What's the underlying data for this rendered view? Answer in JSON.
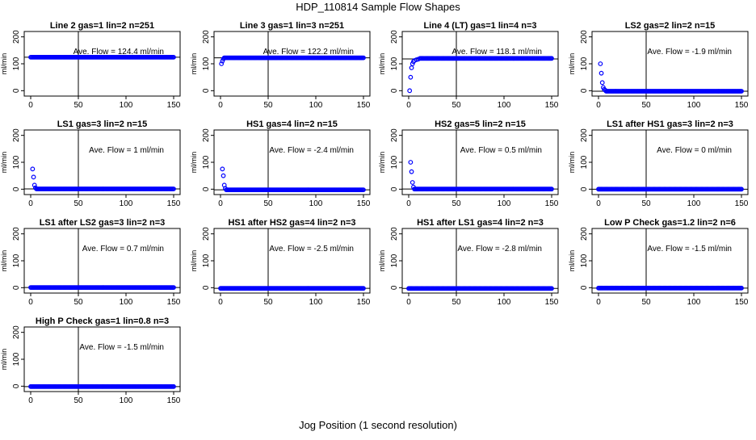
{
  "title": "HDP_110814  Sample Flow Shapes",
  "xlabel": "Jog Position (1 second resolution)",
  "ylabel": "ml/min",
  "colors": {
    "points": "#0000ff",
    "lines": "#000000",
    "frame": "#000000"
  },
  "chart_data": [
    {
      "type": "scatter",
      "title": "Line 2 gas=1 lin=2 n=251",
      "annotation": "Ave. Flow =  124.4  ml/min",
      "xlim": [
        0,
        150
      ],
      "ylim": [
        -20,
        220
      ],
      "xticks": [
        0,
        50,
        100,
        150
      ],
      "yticks": [
        0,
        100,
        200
      ],
      "vline": 50,
      "hline": 124.4,
      "early": [],
      "plateau": 124.4,
      "plateau_start": 0
    },
    {
      "type": "scatter",
      "title": "Line 3 gas=1 lin=3 n=251",
      "annotation": "Ave. Flow =  122.2  ml/min",
      "xlim": [
        0,
        150
      ],
      "ylim": [
        -20,
        220
      ],
      "xticks": [
        0,
        50,
        100,
        150
      ],
      "yticks": [
        0,
        100,
        200
      ],
      "vline": 50,
      "hline": 122.2,
      "early": [
        [
          1,
          100
        ],
        [
          2,
          110
        ],
        [
          3,
          118
        ]
      ],
      "plateau": 122.2,
      "plateau_start": 4
    },
    {
      "type": "scatter",
      "title": "Line 4 (LT) gas=1 lin=4 n=3",
      "annotation": "Ave. Flow =  118.1  ml/min",
      "xlim": [
        0,
        150
      ],
      "ylim": [
        -20,
        220
      ],
      "xticks": [
        0,
        50,
        100,
        150
      ],
      "yticks": [
        0,
        100,
        200
      ],
      "vline": 50,
      "hline": 118.1,
      "early": [
        [
          1,
          0
        ],
        [
          2,
          50
        ],
        [
          3,
          85
        ],
        [
          4,
          100
        ],
        [
          5,
          108
        ],
        [
          6,
          112
        ],
        [
          8,
          115
        ],
        [
          10,
          117
        ]
      ],
      "plateau": 120,
      "plateau_start": 12
    },
    {
      "type": "scatter",
      "title": "LS2 gas=2 lin=2 n=15",
      "annotation": "Ave. Flow =  -1.9  ml/min",
      "xlim": [
        0,
        150
      ],
      "ylim": [
        -20,
        220
      ],
      "xticks": [
        0,
        50,
        100,
        150
      ],
      "yticks": [
        0,
        100,
        200
      ],
      "vline": 50,
      "hline": -1.9,
      "early": [
        [
          2,
          100
        ],
        [
          3,
          65
        ],
        [
          4,
          30
        ],
        [
          5,
          12
        ],
        [
          6,
          5
        ],
        [
          7,
          2
        ]
      ],
      "plateau": -1.9,
      "plateau_start": 8
    },
    {
      "type": "scatter",
      "title": "LS1 gas=3 lin=2 n=15",
      "annotation": "Ave. Flow =  1  ml/min",
      "xlim": [
        0,
        150
      ],
      "ylim": [
        -20,
        220
      ],
      "xticks": [
        0,
        50,
        100,
        150
      ],
      "yticks": [
        0,
        100,
        200
      ],
      "vline": 50,
      "hline": 1,
      "early": [
        [
          2,
          75
        ],
        [
          3,
          45
        ],
        [
          4,
          15
        ],
        [
          5,
          5
        ]
      ],
      "plateau": 1,
      "plateau_start": 6
    },
    {
      "type": "scatter",
      "title": "HS1 gas=4 lin=2 n=15",
      "annotation": "Ave. Flow =  -2.4  ml/min",
      "xlim": [
        0,
        150
      ],
      "ylim": [
        -20,
        220
      ],
      "xticks": [
        0,
        50,
        100,
        150
      ],
      "yticks": [
        0,
        100,
        200
      ],
      "vline": 50,
      "hline": -2.4,
      "early": [
        [
          2,
          75
        ],
        [
          3,
          50
        ],
        [
          4,
          15
        ],
        [
          5,
          3
        ]
      ],
      "plateau": -2.4,
      "plateau_start": 6
    },
    {
      "type": "scatter",
      "title": "HS2 gas=5 lin=2 n=15",
      "annotation": "Ave. Flow =  0.5  ml/min",
      "xlim": [
        0,
        150
      ],
      "ylim": [
        -20,
        220
      ],
      "xticks": [
        0,
        50,
        100,
        150
      ],
      "yticks": [
        0,
        100,
        200
      ],
      "vline": 50,
      "hline": 0.5,
      "early": [
        [
          2,
          100
        ],
        [
          3,
          65
        ],
        [
          4,
          25
        ],
        [
          5,
          8
        ]
      ],
      "plateau": 0.5,
      "plateau_start": 6
    },
    {
      "type": "scatter",
      "title": "LS1 after HS1 gas=3 lin=2 n=3",
      "annotation": "Ave. Flow =  0  ml/min",
      "xlim": [
        0,
        150
      ],
      "ylim": [
        -20,
        220
      ],
      "xticks": [
        0,
        50,
        100,
        150
      ],
      "yticks": [
        0,
        100,
        200
      ],
      "vline": 50,
      "hline": 0,
      "early": [],
      "plateau": 0,
      "plateau_start": 0
    },
    {
      "type": "scatter",
      "title": "LS1 after LS2 gas=3 lin=2 n=3",
      "annotation": "Ave. Flow =  0.7  ml/min",
      "xlim": [
        0,
        150
      ],
      "ylim": [
        -20,
        220
      ],
      "xticks": [
        0,
        50,
        100,
        150
      ],
      "yticks": [
        0,
        100,
        200
      ],
      "vline": 50,
      "hline": 0.7,
      "early": [],
      "plateau": 0.7,
      "plateau_start": 0
    },
    {
      "type": "scatter",
      "title": "HS1 after HS2 gas=4 lin=2 n=3",
      "annotation": "Ave. Flow =  -2.5  ml/min",
      "xlim": [
        0,
        150
      ],
      "ylim": [
        -20,
        220
      ],
      "xticks": [
        0,
        50,
        100,
        150
      ],
      "yticks": [
        0,
        100,
        200
      ],
      "vline": 50,
      "hline": -2.5,
      "early": [],
      "plateau": -2.5,
      "plateau_start": 0
    },
    {
      "type": "scatter",
      "title": "HS1 after LS1 gas=4 lin=2 n=3",
      "annotation": "Ave. Flow =  -2.8  ml/min",
      "xlim": [
        0,
        150
      ],
      "ylim": [
        -20,
        220
      ],
      "xticks": [
        0,
        50,
        100,
        150
      ],
      "yticks": [
        0,
        100,
        200
      ],
      "vline": 50,
      "hline": -2.8,
      "early": [],
      "plateau": -2.8,
      "plateau_start": 0
    },
    {
      "type": "scatter",
      "title": "Low P Check gas=1.2 lin=2 n=6",
      "annotation": "Ave. Flow =  -1.5  ml/min",
      "xlim": [
        0,
        150
      ],
      "ylim": [
        -20,
        220
      ],
      "xticks": [
        0,
        50,
        100,
        150
      ],
      "yticks": [
        0,
        100,
        200
      ],
      "vline": 50,
      "hline": -1.5,
      "early": [],
      "plateau": -1.5,
      "plateau_start": 0
    },
    {
      "type": "scatter",
      "title": "High P Check gas=1 lin=0.8 n=3",
      "annotation": "Ave. Flow =  -1.5  ml/min",
      "xlim": [
        0,
        150
      ],
      "ylim": [
        -20,
        220
      ],
      "xticks": [
        0,
        50,
        100,
        150
      ],
      "yticks": [
        0,
        100,
        200
      ],
      "vline": 50,
      "hline": -1.5,
      "early": [],
      "plateau": -1.5,
      "plateau_start": 0
    }
  ]
}
